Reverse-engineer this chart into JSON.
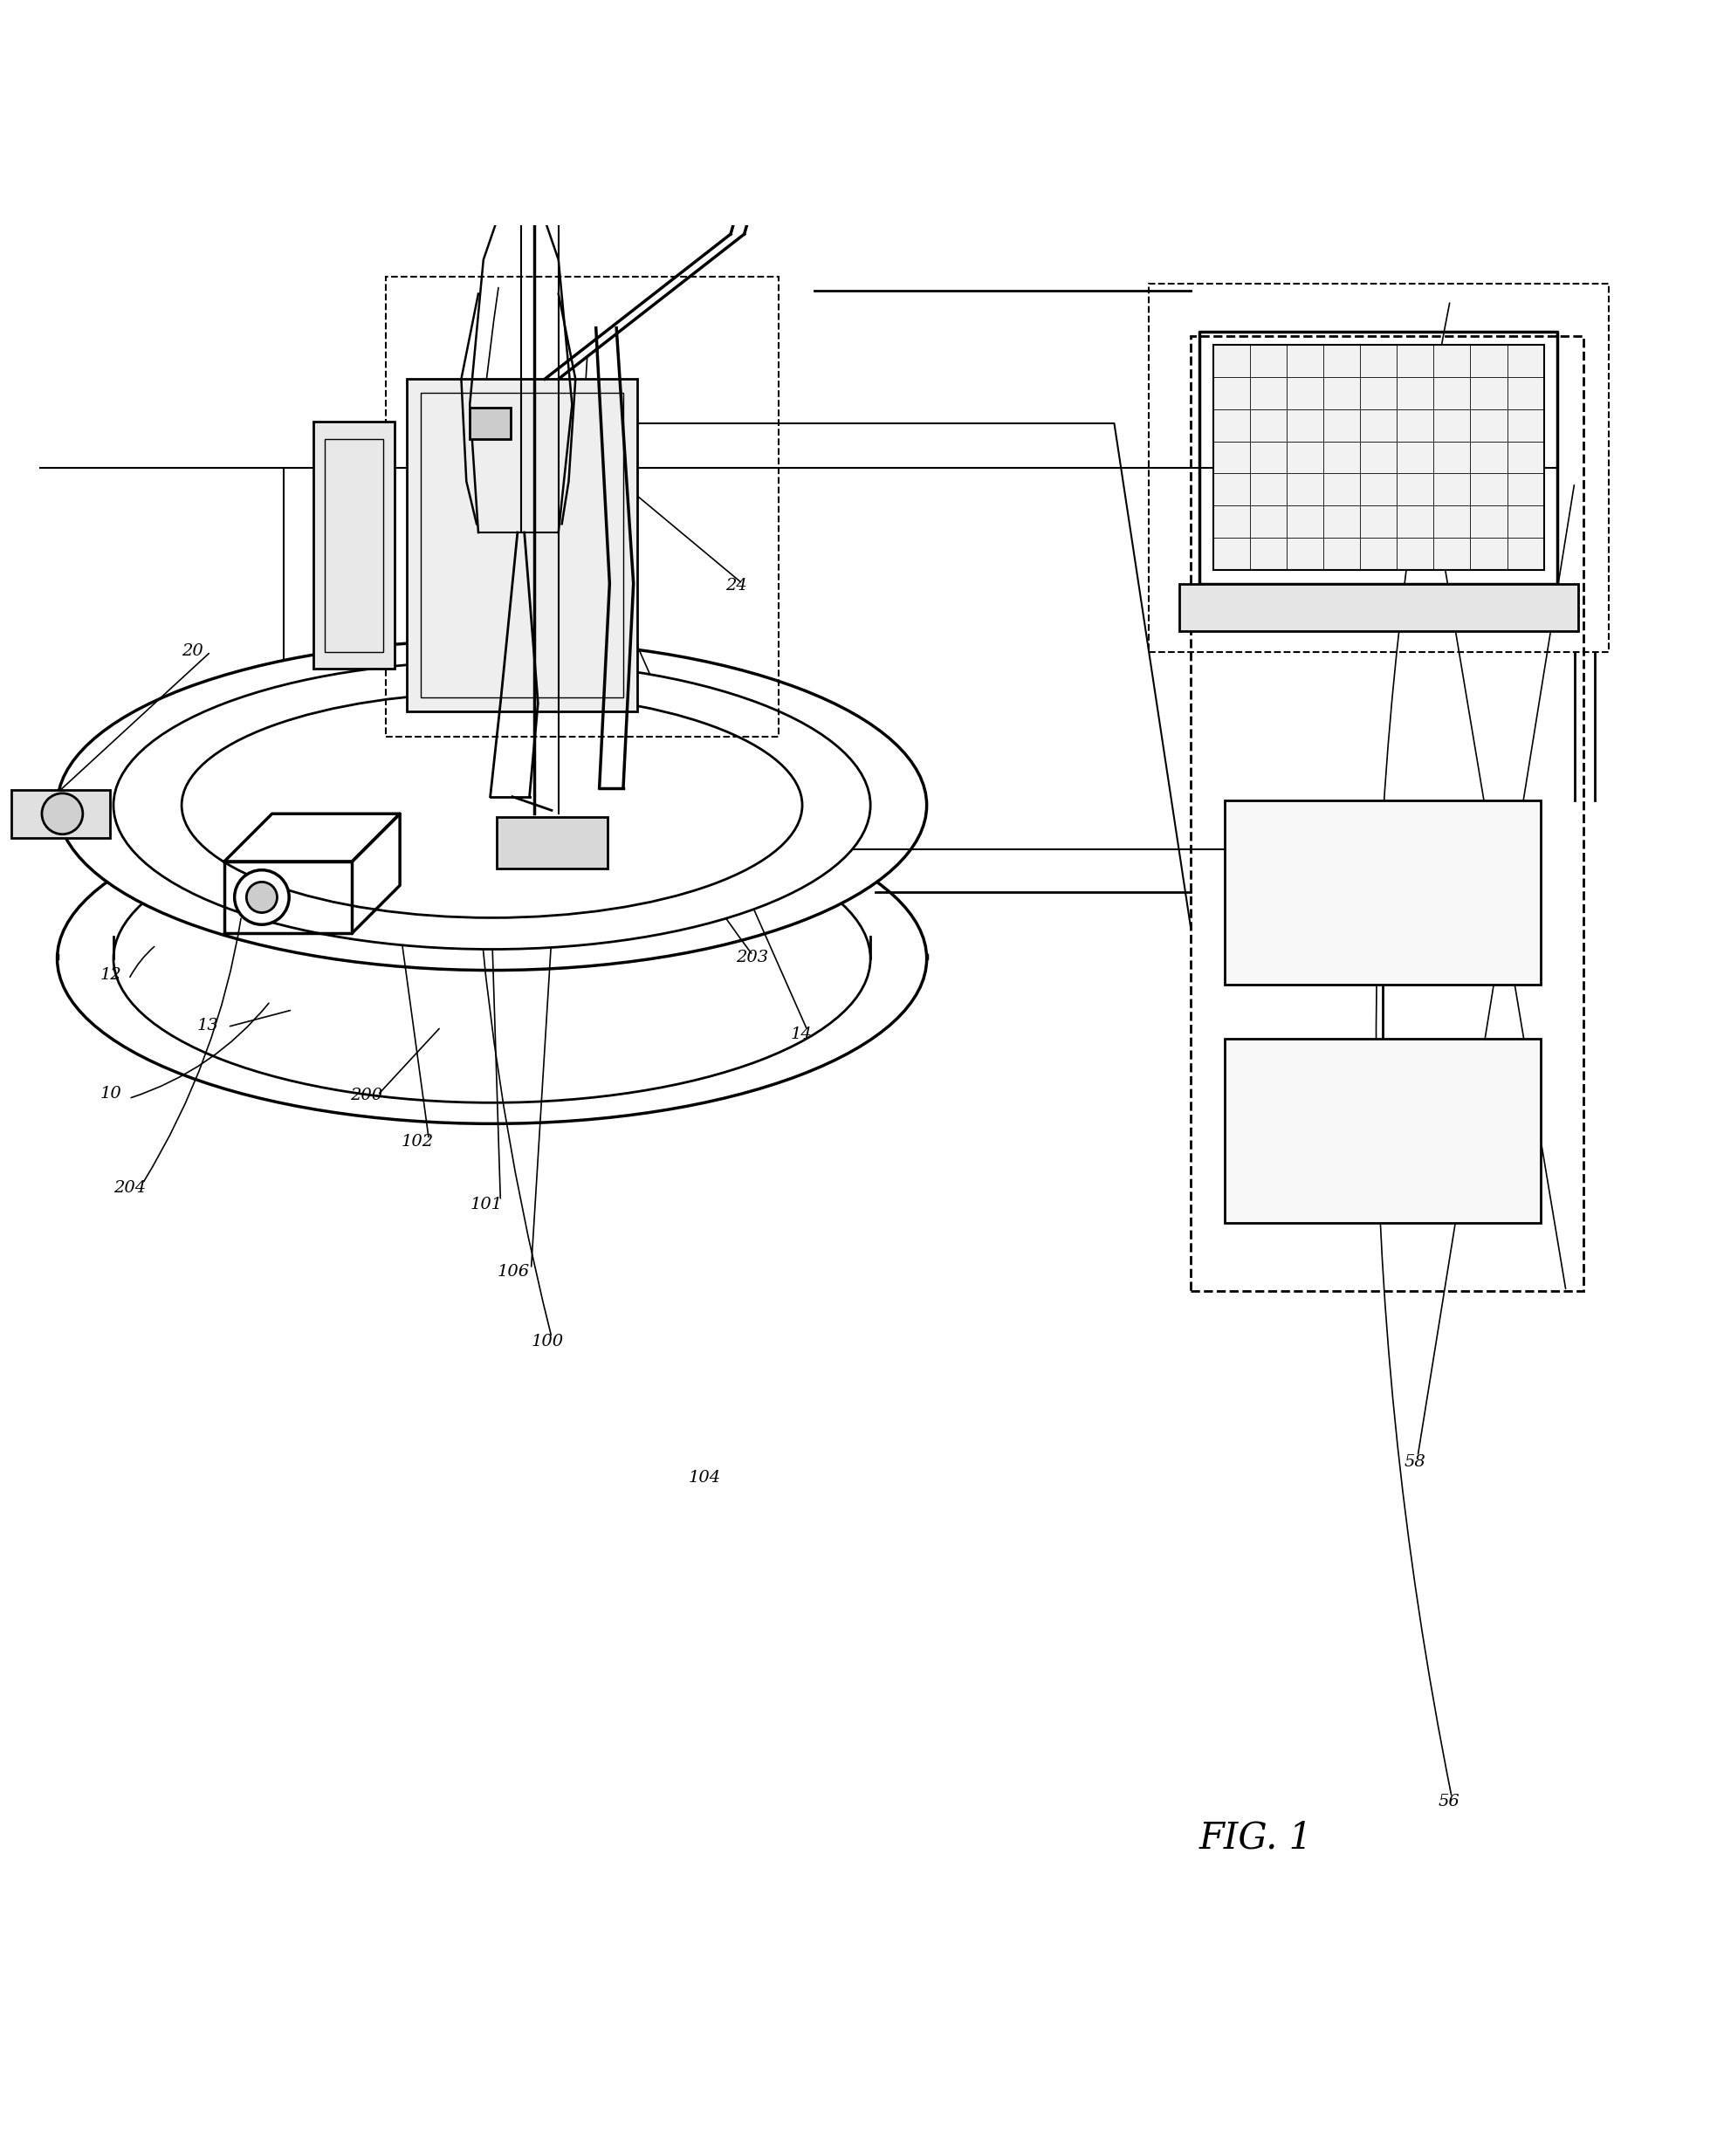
{
  "bg_color": "#ffffff",
  "line_color": "#000000",
  "fig_label": "FIG. 1"
}
